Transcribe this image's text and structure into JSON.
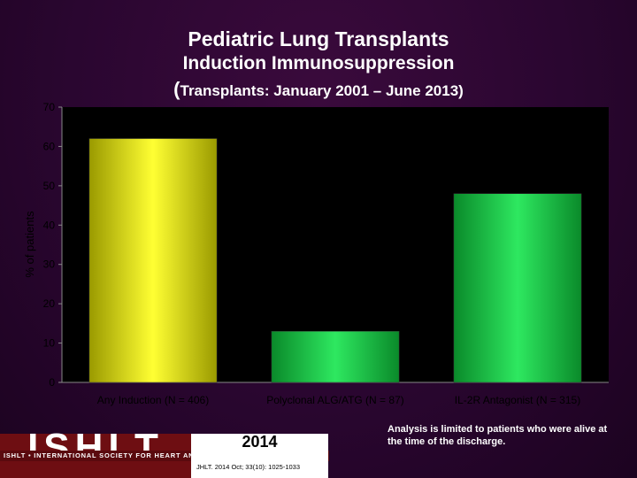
{
  "header": {
    "title": "Pediatric Lung Transplants",
    "subtitle": "Induction Immunosuppression",
    "range_paren_open": "(",
    "range_text": "Transplants: January 2001 – June 2013)"
  },
  "chart_data": {
    "type": "bar",
    "categories": [
      "Any Induction (N = 406)",
      "Polyclonal ALG/ATG (N = 87)",
      "IL-2R Antagonist (N = 315)"
    ],
    "values": [
      62,
      13,
      48
    ],
    "bar_colors": [
      "#e6e600",
      "#1fc84a",
      "#1fc84a"
    ],
    "xlabel": "",
    "ylabel": "% of patients",
    "ylim": [
      0,
      70
    ],
    "yticks": [
      0,
      10,
      20,
      30,
      40,
      50,
      60,
      70
    ],
    "grid": false,
    "background": "#000000"
  },
  "footnote": "Analysis is limited to patients who were alive at the time of the discharge.",
  "footer": {
    "logo": "ISHLT",
    "society": "ISHLT • INTERNATIONAL SOCIETY FOR HEART AND LUNG TRANSPLANTATION",
    "year": "2014",
    "citation": "JHLT. 2014 Oct; 33(10): 1025-1033"
  }
}
